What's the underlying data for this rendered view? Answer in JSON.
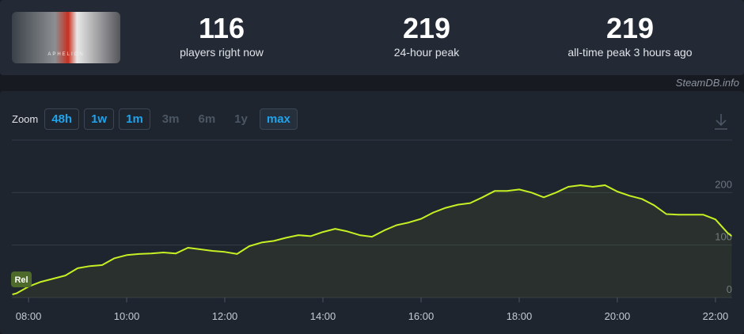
{
  "header": {
    "art_text": "APHELION",
    "stats": [
      {
        "value": "116",
        "label": "players right now"
      },
      {
        "value": "219",
        "label": "24-hour peak"
      },
      {
        "value": "219",
        "label": "all-time peak 3 hours ago"
      }
    ]
  },
  "watermark": "SteamDB.info",
  "zoom": {
    "label": "Zoom",
    "buttons": [
      {
        "text": "48h",
        "enabled": true,
        "active": false
      },
      {
        "text": "1w",
        "enabled": true,
        "active": false
      },
      {
        "text": "1m",
        "enabled": true,
        "active": false
      },
      {
        "text": "3m",
        "enabled": false,
        "active": false
      },
      {
        "text": "6m",
        "enabled": false,
        "active": false
      },
      {
        "text": "1y",
        "enabled": false,
        "active": false
      },
      {
        "text": "max",
        "enabled": true,
        "active": true
      }
    ]
  },
  "chart_data": {
    "type": "line",
    "color": "#c6f024",
    "grid": true,
    "marker_label": "Rel",
    "x": [
      7.67,
      7.75,
      8,
      8.25,
      8.5,
      8.75,
      9,
      9.25,
      9.5,
      9.75,
      10,
      10.25,
      10.5,
      10.75,
      11,
      11.25,
      11.5,
      11.75,
      12,
      12.25,
      12.5,
      12.75,
      13,
      13.25,
      13.5,
      13.75,
      14,
      14.25,
      14.5,
      14.75,
      15,
      15.25,
      15.5,
      15.75,
      16,
      16.25,
      16.5,
      16.75,
      17,
      17.25,
      17.5,
      17.75,
      18,
      18.25,
      18.5,
      18.75,
      19,
      19.25,
      19.5,
      19.75,
      20,
      20.25,
      20.5,
      20.75,
      21,
      21.25,
      21.5,
      21.75,
      22,
      22.25,
      22.33
    ],
    "values": [
      6,
      8,
      21,
      30,
      36,
      42,
      56,
      60,
      62,
      75,
      81,
      83,
      84,
      86,
      84,
      95,
      92,
      89,
      87,
      83,
      98,
      105,
      108,
      114,
      119,
      117,
      125,
      131,
      126,
      119,
      116,
      128,
      138,
      143,
      150,
      162,
      171,
      177,
      180,
      191,
      203,
      203,
      206,
      200,
      191,
      200,
      211,
      214,
      211,
      214,
      202,
      194,
      188,
      176,
      159,
      158,
      158,
      158,
      149,
      123,
      117
    ],
    "xlim": [
      7.66,
      22.34
    ],
    "xticks": [
      {
        "value": 8,
        "label": "08:00"
      },
      {
        "value": 10,
        "label": "10:00"
      },
      {
        "value": 12,
        "label": "12:00"
      },
      {
        "value": 14,
        "label": "14:00"
      },
      {
        "value": 16,
        "label": "16:00"
      },
      {
        "value": 18,
        "label": "18:00"
      },
      {
        "value": 20,
        "label": "20:00"
      },
      {
        "value": 22,
        "label": "22:00"
      }
    ],
    "ylim": [
      0,
      300
    ],
    "yticks": [
      0,
      100,
      200
    ]
  }
}
